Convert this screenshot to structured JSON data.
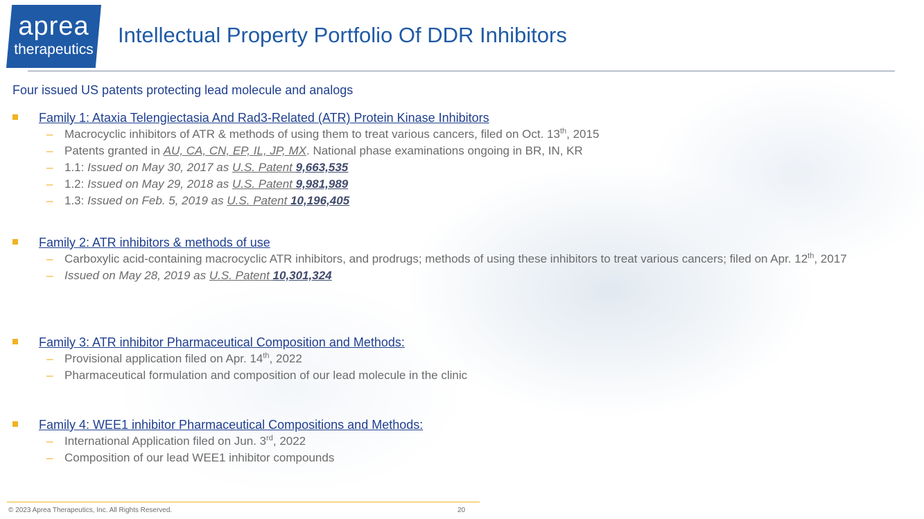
{
  "logo": {
    "top": "aprea",
    "bottom": "therapeutics"
  },
  "title": "Intellectual Property Portfolio Of DDR Inhibitors",
  "subtitle": "Four issued US patents protecting lead molecule and analogs",
  "families": [
    {
      "title": "Family 1: Ataxia Telengiectasia And Rad3-Related (ATR) Protein Kinase Inhibitors",
      "items": [
        {
          "pre": "Macrocyclic inhibitors of ATR & methods of using them to treat various cancers, filed on Oct. 13",
          "sup": "th",
          "post": ", 2015"
        },
        {
          "pre": "Patents granted in ",
          "countries": "AU, CA, CN, EP, IL, JP, MX",
          "post": ". National phase examinations ongoing in BR, IN, KR"
        },
        {
          "label": "1.1: ",
          "issued": "Issued on May 30, 2017 as ",
          "patent_label": "U.S. Patent ",
          "patent": "9,663,535"
        },
        {
          "label": "1.2: ",
          "issued": "Issued on May 29, 2018 as ",
          "patent_label": "U.S. Patent ",
          "patent": "9,981,989"
        },
        {
          "label": "1.3: ",
          "issued": "Issued on Feb. 5, 2019 as ",
          "patent_label": "U.S. Patent ",
          "patent": "10,196,405"
        }
      ]
    },
    {
      "title": "Family 2: ATR inhibitors & methods of use",
      "items": [
        {
          "pre": "Carboxylic acid-containing macrocyclic ATR inhibitors, and prodrugs; methods of using these inhibitors to treat various cancers; filed on Apr. 12",
          "sup": "th",
          "post": ", 2017"
        },
        {
          "issued": "Issued on May 28, 2019 as ",
          "patent_label": "U.S. Patent ",
          "patent": "10,301,324"
        }
      ]
    },
    {
      "title": "Family 3: ATR inhibitor Pharmaceutical Composition and Methods:",
      "items": [
        {
          "pre": "Provisional application filed on Apr. 14",
          "sup": "th",
          "post": ", 2022"
        },
        {
          "text": "Pharmaceutical formulation and composition of our lead molecule in the clinic"
        }
      ]
    },
    {
      "title": "Family 4: WEE1 inhibitor Pharmaceutical Compositions and Methods:",
      "items": [
        {
          "pre": "International Application filed on Jun. 3",
          "sup": "rd",
          "post": ", 2022"
        },
        {
          "text": "Composition of our lead WEE1 inhibitor compounds"
        }
      ]
    }
  ],
  "footer": {
    "copyright": "© 2023 Aprea Therapeutics, Inc. All Rights Reserved.",
    "page": "20"
  },
  "colors": {
    "brand_blue": "#1f5aa6",
    "heading_blue": "#1f3f8f",
    "accent_gold": "#f0b323",
    "body_gray": "#6b6b6b"
  }
}
